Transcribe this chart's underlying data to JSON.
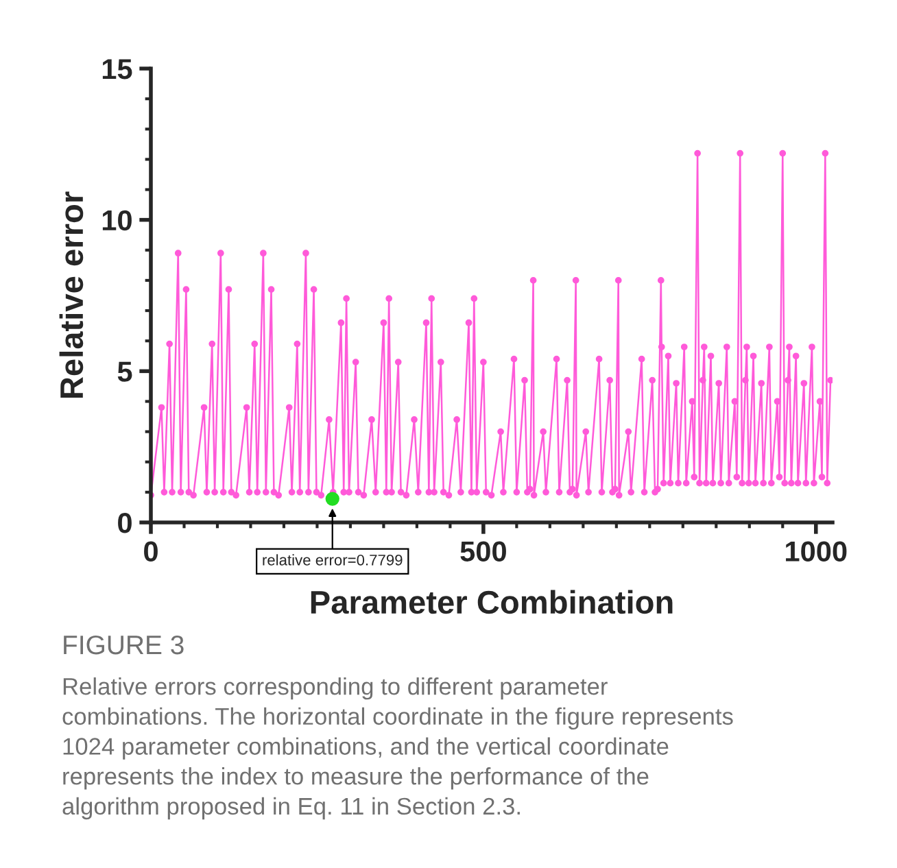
{
  "chart_data": {
    "type": "line",
    "xlabel": "Parameter Combination",
    "ylabel": "Relative error",
    "xlim": [
      0,
      1025
    ],
    "xticks": [
      0,
      500,
      1000
    ],
    "ylim": [
      0,
      15
    ],
    "yticks": [
      0,
      5,
      10,
      15
    ],
    "grid": false,
    "legend": false,
    "marker": "circle",
    "line_style": "solid",
    "series": [
      {
        "color": "#ff5ad9",
        "x": [
          0,
          16,
          20,
          28,
          32,
          41,
          45,
          53,
          57,
          64,
          80,
          84,
          92,
          96,
          105,
          109,
          117,
          121,
          128,
          144,
          148,
          156,
          160,
          169,
          173,
          181,
          185,
          192,
          208,
          212,
          220,
          224,
          233,
          237,
          245,
          249,
          256,
          268,
          274,
          286,
          290,
          294,
          298,
          308,
          312,
          320,
          332,
          338,
          350,
          354,
          358,
          362,
          372,
          376,
          384,
          396,
          402,
          414,
          418,
          422,
          426,
          436,
          440,
          448,
          460,
          466,
          478,
          482,
          486,
          490,
          500,
          504,
          512,
          526,
          530,
          546,
          550,
          562,
          566,
          570,
          575,
          576,
          590,
          594,
          610,
          614,
          626,
          630,
          634,
          639,
          640,
          654,
          658,
          674,
          678,
          690,
          694,
          698,
          703,
          704,
          718,
          722,
          738,
          742,
          754,
          758,
          762,
          767,
          768,
          771,
          778,
          781,
          790,
          793,
          802,
          805,
          814,
          817,
          822,
          825,
          830,
          832,
          835,
          842,
          845,
          854,
          857,
          866,
          869,
          878,
          881,
          886,
          889,
          894,
          896,
          899,
          906,
          909,
          918,
          921,
          930,
          933,
          942,
          945,
          950,
          953,
          958,
          960,
          963,
          970,
          973,
          982,
          985,
          994,
          997,
          1006,
          1009,
          1014,
          1017,
          1022
        ],
        "values": [
          0.9,
          3.8,
          1.0,
          5.9,
          1.0,
          8.9,
          1.0,
          7.7,
          1.0,
          0.9,
          3.8,
          1.0,
          5.9,
          1.0,
          8.9,
          1.0,
          7.7,
          1.0,
          0.9,
          3.8,
          1.0,
          5.9,
          1.0,
          8.9,
          1.0,
          7.7,
          1.0,
          0.9,
          3.8,
          1.0,
          5.9,
          1.0,
          8.9,
          1.0,
          7.7,
          1.0,
          0.9,
          3.4,
          1.0,
          6.6,
          1.0,
          7.4,
          1.0,
          5.3,
          1.0,
          0.9,
          3.4,
          1.0,
          6.6,
          1.0,
          7.4,
          1.0,
          5.3,
          1.0,
          0.9,
          3.4,
          1.0,
          6.6,
          1.0,
          7.4,
          1.0,
          5.3,
          1.0,
          0.9,
          3.4,
          1.0,
          6.6,
          1.0,
          7.4,
          1.0,
          5.3,
          1.0,
          0.9,
          3.0,
          1.0,
          5.4,
          1.0,
          4.7,
          1.0,
          1.1,
          8.0,
          0.9,
          3.0,
          1.0,
          5.4,
          1.0,
          4.7,
          1.0,
          1.1,
          8.0,
          0.9,
          3.0,
          1.0,
          5.4,
          1.0,
          4.7,
          1.0,
          1.1,
          8.0,
          0.9,
          3.0,
          1.0,
          5.4,
          1.0,
          4.7,
          1.0,
          1.1,
          8.0,
          5.8,
          1.3,
          5.5,
          1.3,
          4.6,
          1.3,
          5.8,
          1.3,
          4.0,
          1.5,
          12.2,
          1.3,
          4.7,
          5.8,
          1.3,
          5.5,
          1.3,
          4.6,
          1.3,
          5.8,
          1.3,
          4.0,
          1.5,
          12.2,
          1.3,
          4.7,
          5.8,
          1.3,
          5.5,
          1.3,
          4.6,
          1.3,
          5.8,
          1.3,
          4.0,
          1.5,
          12.2,
          1.3,
          4.7,
          5.8,
          1.3,
          5.5,
          1.3,
          4.6,
          1.3,
          5.8,
          1.3,
          4.0,
          1.5,
          12.2,
          1.3,
          4.7
        ]
      },
      {
        "type": "scatter",
        "color": "#22dd22",
        "x": [
          273
        ],
        "values": [
          0.7799
        ]
      }
    ],
    "annotations": [
      {
        "text": "relative error=0.7799",
        "x": 273,
        "y": 0.7799
      },
      "FIGURE 3",
      "Relative errors corresponding to different parameter combinations. The horizontal coordinate in the figure represents 1024 parameter combinations, and the vertical coordinate represents the index to measure the performance of the algorithm proposed in Eq. 11 in Section 2.3."
    ]
  }
}
